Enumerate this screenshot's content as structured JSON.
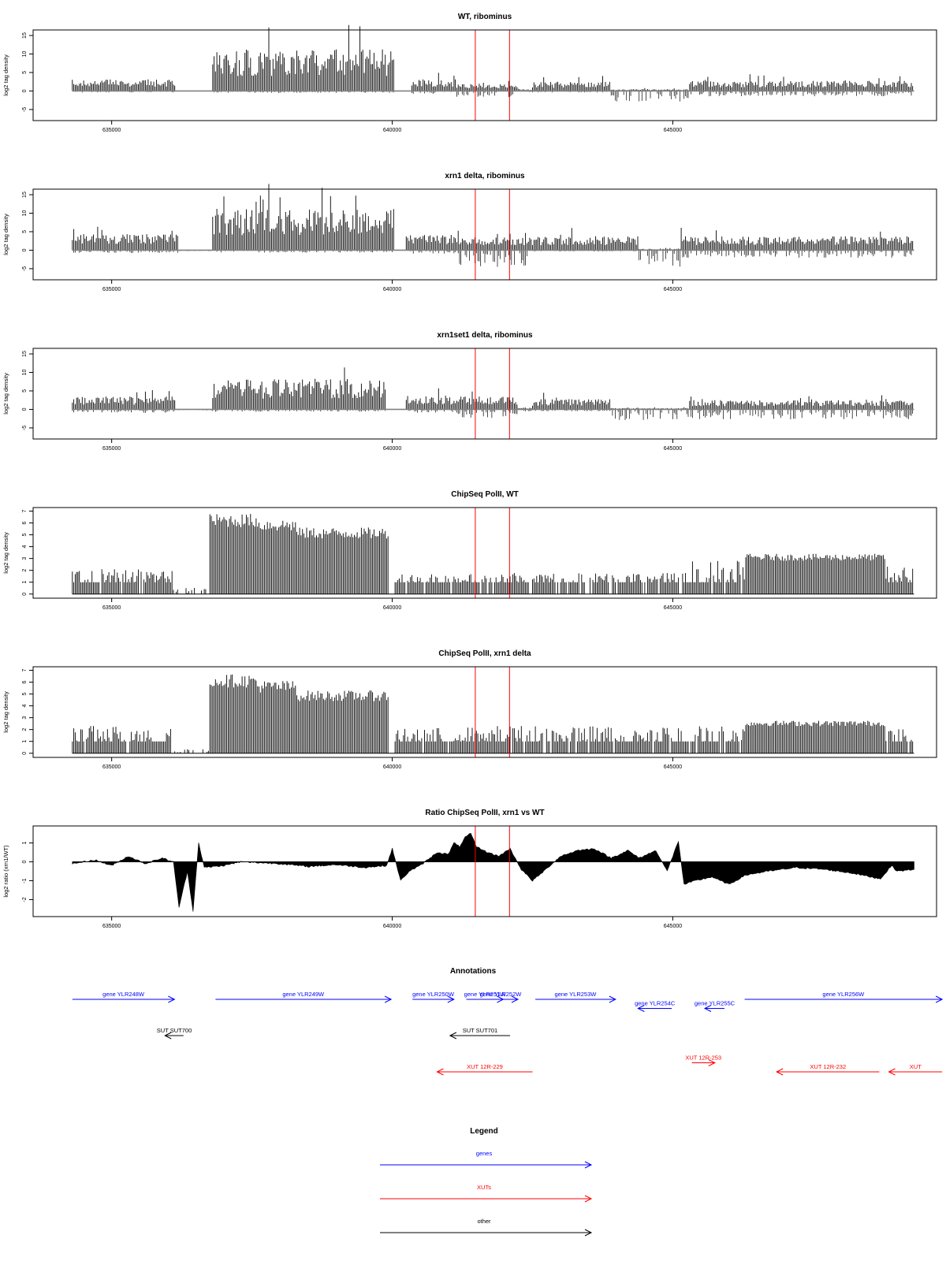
{
  "colors": {
    "gene": "#0000ff",
    "xut": "#ff0000",
    "other": "#000000",
    "marker": "#ff0000",
    "signal": "#000000",
    "baseline": "#808080"
  },
  "chart_data": [
    {
      "type": "bar",
      "title": "WT, ribominus",
      "ylabel": "log2 tag density",
      "xlim": [
        633600,
        649700
      ],
      "ylim": [
        -8,
        16.5
      ],
      "yticks": [
        -5,
        0,
        5,
        10,
        15
      ],
      "xticks": [
        635000,
        640000,
        645000
      ],
      "xtick_labels": [
        "635000",
        "640000",
        "645000"
      ],
      "markers": [
        641480,
        642090
      ],
      "data_start": 634300,
      "data_end": 649300,
      "step": 25,
      "segments": [
        {
          "start": 634300,
          "end": 636150,
          "sense": 2.5,
          "anti": -0.3
        },
        {
          "start": 636150,
          "end": 636800,
          "sense": 0,
          "anti": -0.1
        },
        {
          "start": 636800,
          "end": 640050,
          "sense": 9.0,
          "anti": -0.4
        },
        {
          "start": 640050,
          "end": 640350,
          "sense": 0,
          "anti": -0.1
        },
        {
          "start": 640350,
          "end": 641150,
          "sense": 2.5,
          "anti": -0.6
        },
        {
          "start": 641150,
          "end": 642250,
          "sense": 1.5,
          "anti": -1.3
        },
        {
          "start": 642250,
          "end": 642500,
          "sense": 0.4,
          "anti": -0.3
        },
        {
          "start": 642500,
          "end": 643900,
          "sense": 2.0,
          "anti": -0.3
        },
        {
          "start": 643900,
          "end": 645300,
          "sense": 0.4,
          "anti": -2.2
        },
        {
          "start": 645300,
          "end": 649300,
          "sense": 2.2,
          "anti": -1.1
        }
      ]
    },
    {
      "type": "bar",
      "title": "xrn1 delta, ribominus",
      "ylabel": "log2 tag density",
      "xlim": [
        633600,
        649700
      ],
      "ylim": [
        -8,
        16.5
      ],
      "yticks": [
        -5,
        0,
        5,
        10,
        15
      ],
      "xticks": [
        635000,
        640000,
        645000
      ],
      "xtick_labels": [
        "635000",
        "640000",
        "645000"
      ],
      "markers": [
        641480,
        642090
      ],
      "data_start": 634300,
      "data_end": 649300,
      "step": 25,
      "segments": [
        {
          "start": 634300,
          "end": 636200,
          "sense": 3.5,
          "anti": -0.6
        },
        {
          "start": 636200,
          "end": 636800,
          "sense": 0,
          "anti": -0.2
        },
        {
          "start": 636800,
          "end": 640050,
          "sense": 9.0,
          "anti": -0.5
        },
        {
          "start": 640050,
          "end": 640250,
          "sense": 0,
          "anti": -0.1
        },
        {
          "start": 640250,
          "end": 641150,
          "sense": 3.5,
          "anti": -0.8
        },
        {
          "start": 641150,
          "end": 642500,
          "sense": 3.0,
          "anti": -3.5
        },
        {
          "start": 642500,
          "end": 644400,
          "sense": 3.0,
          "anti": -0.3
        },
        {
          "start": 644400,
          "end": 645150,
          "sense": 0.3,
          "anti": -3.5
        },
        {
          "start": 645150,
          "end": 649300,
          "sense": 3.0,
          "anti": -1.6
        }
      ]
    },
    {
      "type": "bar",
      "title": "xrn1set1 delta, ribominus",
      "ylabel": "log2 tag density",
      "xlim": [
        633600,
        649700
      ],
      "ylim": [
        -8,
        16.5
      ],
      "yticks": [
        -5,
        0,
        5,
        10,
        15
      ],
      "xticks": [
        635000,
        640000,
        645000
      ],
      "xtick_labels": [
        "635000",
        "640000",
        "645000"
      ],
      "markers": [
        641480,
        642090
      ],
      "data_start": 634300,
      "data_end": 649300,
      "step": 25,
      "segments": [
        {
          "start": 634300,
          "end": 636150,
          "sense": 2.8,
          "anti": -0.7
        },
        {
          "start": 636150,
          "end": 636800,
          "sense": 0,
          "anti": -0.2
        },
        {
          "start": 636800,
          "end": 639900,
          "sense": 6.5,
          "anti": -0.5
        },
        {
          "start": 639900,
          "end": 640250,
          "sense": 0,
          "anti": -0.1
        },
        {
          "start": 640250,
          "end": 641150,
          "sense": 3.0,
          "anti": -0.7
        },
        {
          "start": 641150,
          "end": 642250,
          "sense": 2.8,
          "anti": -1.8
        },
        {
          "start": 642250,
          "end": 642500,
          "sense": 0.4,
          "anti": -0.4
        },
        {
          "start": 642500,
          "end": 643900,
          "sense": 2.2,
          "anti": -0.4
        },
        {
          "start": 643900,
          "end": 645300,
          "sense": 0.3,
          "anti": -2.3
        },
        {
          "start": 645300,
          "end": 649300,
          "sense": 2.0,
          "anti": -2.1
        }
      ]
    },
    {
      "type": "bar",
      "title": "ChipSeq PolII, WT",
      "ylabel": "log2 tag density",
      "xlim": [
        633600,
        649700
      ],
      "ylim": [
        -0.35,
        7.3
      ],
      "yticks": [
        0,
        1,
        2,
        3,
        4,
        5,
        6,
        7
      ],
      "xticks": [
        635000,
        640000,
        645000
      ],
      "xtick_labels": [
        "635000",
        "640000",
        "645000"
      ],
      "markers": [
        641480,
        642090
      ],
      "data_start": 634300,
      "data_end": 649300,
      "step": 25,
      "segments": [
        {
          "start": 634300,
          "end": 636100,
          "level": 1.2,
          "kind": "sparse"
        },
        {
          "start": 636100,
          "end": 636750,
          "level": 0.3,
          "kind": "sparse"
        },
        {
          "start": 636750,
          "end": 637600,
          "level": 6.4,
          "kind": "dense"
        },
        {
          "start": 637600,
          "end": 638300,
          "level": 6.0,
          "kind": "dense"
        },
        {
          "start": 638300,
          "end": 639950,
          "level": 5.3,
          "kind": "dense"
        },
        {
          "start": 639950,
          "end": 640050,
          "level": 0,
          "kind": "sparse"
        },
        {
          "start": 640050,
          "end": 641200,
          "level": 1.0,
          "kind": "sparse"
        },
        {
          "start": 641200,
          "end": 645250,
          "level": 1.0,
          "kind": "sparse"
        },
        {
          "start": 645250,
          "end": 646300,
          "level": 1.6,
          "kind": "sparse"
        },
        {
          "start": 646300,
          "end": 648800,
          "level": 3.2,
          "kind": "dense"
        },
        {
          "start": 648800,
          "end": 649300,
          "level": 1.3,
          "kind": "sparse"
        }
      ]
    },
    {
      "type": "bar",
      "title": "ChipSeq PolII, xrn1 delta",
      "ylabel": "log2 tag density",
      "xlim": [
        633600,
        649700
      ],
      "ylim": [
        -0.35,
        7.3
      ],
      "yticks": [
        0,
        1,
        2,
        3,
        4,
        5,
        6,
        7
      ],
      "xticks": [
        635000,
        640000,
        645000
      ],
      "xtick_labels": [
        "635000",
        "640000",
        "645000"
      ],
      "markers": [
        641480,
        642090
      ],
      "data_start": 634300,
      "data_end": 649300,
      "step": 25,
      "segments": [
        {
          "start": 634300,
          "end": 636100,
          "level": 1.3,
          "kind": "sparse"
        },
        {
          "start": 636100,
          "end": 636750,
          "level": 0.2,
          "kind": "sparse"
        },
        {
          "start": 636750,
          "end": 637600,
          "level": 6.3,
          "kind": "dense"
        },
        {
          "start": 637600,
          "end": 638300,
          "level": 5.8,
          "kind": "dense"
        },
        {
          "start": 638300,
          "end": 639950,
          "level": 5.0,
          "kind": "dense"
        },
        {
          "start": 639950,
          "end": 640050,
          "level": 0,
          "kind": "sparse"
        },
        {
          "start": 640050,
          "end": 641200,
          "level": 1.2,
          "kind": "sparse"
        },
        {
          "start": 641200,
          "end": 645250,
          "level": 1.3,
          "kind": "sparse"
        },
        {
          "start": 645250,
          "end": 646300,
          "level": 1.3,
          "kind": "sparse"
        },
        {
          "start": 646300,
          "end": 648800,
          "level": 2.6,
          "kind": "dense"
        },
        {
          "start": 648800,
          "end": 649300,
          "level": 1.2,
          "kind": "sparse"
        }
      ]
    },
    {
      "type": "area",
      "title": "Ratio ChipSeq PolII, xrn1 vs WT",
      "ylabel": "log2 ratio (xrn1/WT)",
      "xlim": [
        633600,
        649700
      ],
      "ylim": [
        -2.9,
        1.9
      ],
      "yticks": [
        -2,
        -1,
        0,
        1
      ],
      "xticks": [
        635000,
        640000,
        645000
      ],
      "xtick_labels": [
        "635000",
        "640000",
        "645000"
      ],
      "markers": [
        641480,
        642090
      ],
      "data_start": 634300,
      "data_end": 649300,
      "step": 25,
      "points": [
        [
          634300,
          -0.1
        ],
        [
          634700,
          0.1
        ],
        [
          635000,
          -0.2
        ],
        [
          635300,
          0.3
        ],
        [
          635600,
          -0.1
        ],
        [
          635900,
          0.2
        ],
        [
          636100,
          0.0
        ],
        [
          636200,
          -2.4
        ],
        [
          636350,
          -0.5
        ],
        [
          636450,
          -2.6
        ],
        [
          636550,
          1.0
        ],
        [
          636650,
          -0.3
        ],
        [
          637000,
          -0.2
        ],
        [
          637300,
          0.0
        ],
        [
          638000,
          -0.1
        ],
        [
          638500,
          -0.25
        ],
        [
          639000,
          -0.15
        ],
        [
          639500,
          -0.3
        ],
        [
          639900,
          -0.2
        ],
        [
          640000,
          0.7
        ],
        [
          640150,
          -1.0
        ],
        [
          640300,
          -0.5
        ],
        [
          640500,
          -0.2
        ],
        [
          640800,
          0.5
        ],
        [
          641000,
          0.4
        ],
        [
          641100,
          1.0
        ],
        [
          641200,
          0.8
        ],
        [
          641300,
          1.3
        ],
        [
          641400,
          1.5
        ],
        [
          641500,
          0.8
        ],
        [
          641700,
          0.5
        ],
        [
          641900,
          0.3
        ],
        [
          642100,
          0.7
        ],
        [
          642300,
          -0.4
        ],
        [
          642500,
          -1.0
        ],
        [
          642700,
          -0.5
        ],
        [
          643000,
          0.3
        ],
        [
          643300,
          0.6
        ],
        [
          643600,
          0.7
        ],
        [
          643900,
          0.2
        ],
        [
          644200,
          0.6
        ],
        [
          644400,
          0.2
        ],
        [
          644700,
          0.6
        ],
        [
          644900,
          -0.5
        ],
        [
          645100,
          1.1
        ],
        [
          645200,
          -1.2
        ],
        [
          645400,
          -1.0
        ],
        [
          645700,
          -0.8
        ],
        [
          646000,
          -1.2
        ],
        [
          646300,
          -0.7
        ],
        [
          646700,
          -0.5
        ],
        [
          647200,
          -0.3
        ],
        [
          647700,
          -0.4
        ],
        [
          648200,
          -0.6
        ],
        [
          648700,
          -0.9
        ],
        [
          648900,
          -0.2
        ],
        [
          649000,
          -0.5
        ],
        [
          649300,
          -0.4
        ]
      ]
    }
  ],
  "annotations": {
    "title": "Annotations",
    "items": [
      {
        "label": "gene YLR248W",
        "type": "gene",
        "start": 634300,
        "end": 636120,
        "strand": "+",
        "row": 0
      },
      {
        "label": "gene YLR249W",
        "type": "gene",
        "start": 636850,
        "end": 639980,
        "strand": "+",
        "row": 0
      },
      {
        "label": "gene YLR250W",
        "type": "gene",
        "start": 640360,
        "end": 641100,
        "strand": "+",
        "row": 0
      },
      {
        "label": "gene YLR251W",
        "type": "gene",
        "start": 641320,
        "end": 641980,
        "strand": "+",
        "row": 0
      },
      {
        "label": "gene YLR252W",
        "type": "gene",
        "start": 641620,
        "end": 642240,
        "strand": "+",
        "row": 0
      },
      {
        "label": "gene YLR253W",
        "type": "gene",
        "start": 642550,
        "end": 643980,
        "strand": "+",
        "row": 0
      },
      {
        "label": "gene YLR254C",
        "type": "gene",
        "start": 644380,
        "end": 644980,
        "strand": "-",
        "row": 0.25
      },
      {
        "label": "gene YLR255C",
        "type": "gene",
        "start": 645570,
        "end": 645920,
        "strand": "-",
        "row": 0.25
      },
      {
        "label": "gene YLR256W",
        "type": "gene",
        "start": 646280,
        "end": 649800,
        "strand": "+",
        "row": 0
      },
      {
        "label": "SUT SUT700",
        "type": "other",
        "start": 635950,
        "end": 636280,
        "strand": "-",
        "row": 1
      },
      {
        "label": "SUT SUT701",
        "type": "other",
        "start": 641030,
        "end": 642100,
        "strand": "-",
        "row": 1
      },
      {
        "label": "XUT 12R-229",
        "type": "xut",
        "start": 640800,
        "end": 642500,
        "strand": "-",
        "row": 2
      },
      {
        "label": "XUT 12R-253",
        "type": "xut",
        "start": 645340,
        "end": 645750,
        "strand": "+",
        "row": 1.75
      },
      {
        "label": "XUT 12R-232",
        "type": "xut",
        "start": 646850,
        "end": 648680,
        "strand": "-",
        "row": 2
      },
      {
        "label": "XUT",
        "type": "xut",
        "start": 648850,
        "end": 649800,
        "strand": "-",
        "row": 2
      }
    ]
  },
  "legend": {
    "title": "Legend",
    "items": [
      {
        "label": "genes",
        "type": "gene"
      },
      {
        "label": "XUTs",
        "type": "xut"
      },
      {
        "label": "other",
        "type": "other"
      }
    ]
  }
}
